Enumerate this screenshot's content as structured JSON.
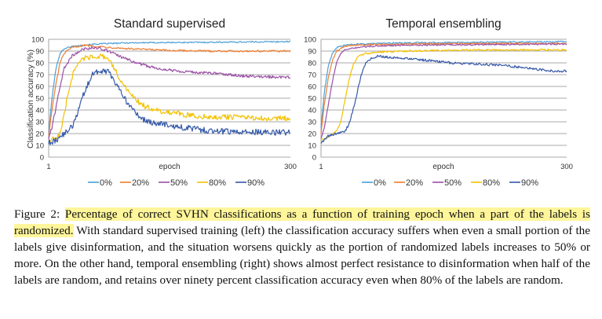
{
  "chart_data": [
    {
      "type": "line",
      "title": "Standard supervised",
      "xlabel": "epoch",
      "ylabel": "Classification accuracy (%)",
      "xlim": [
        1,
        300
      ],
      "ylim": [
        0,
        100
      ],
      "x_ticks": [
        "1",
        "300"
      ],
      "y_ticks": [
        "0",
        "10",
        "20",
        "30",
        "40",
        "50",
        "60",
        "70",
        "80",
        "90",
        "100"
      ],
      "grid": true,
      "legend": "bottom",
      "series": [
        {
          "name": "0%",
          "color": "#4a9fd6",
          "points": [
            [
              1,
              20
            ],
            [
              5,
              50
            ],
            [
              10,
              75
            ],
            [
              15,
              88
            ],
            [
              20,
              92
            ],
            [
              30,
              94
            ],
            [
              45,
              95
            ],
            [
              60,
              96
            ],
            [
              100,
              97
            ],
            [
              200,
              97.5
            ],
            [
              300,
              98
            ]
          ]
        },
        {
          "name": "20%",
          "color": "#ee7d31",
          "points": [
            [
              1,
              18
            ],
            [
              5,
              40
            ],
            [
              10,
              62
            ],
            [
              15,
              80
            ],
            [
              20,
              88
            ],
            [
              30,
              93
            ],
            [
              45,
              95
            ],
            [
              60,
              94
            ],
            [
              80,
              93
            ],
            [
              100,
              92
            ],
            [
              150,
              90.5
            ],
            [
              200,
              90
            ],
            [
              300,
              90
            ]
          ]
        },
        {
          "name": "50%",
          "color": "#9a4fa6",
          "points": [
            [
              1,
              16
            ],
            [
              5,
              25
            ],
            [
              10,
              42
            ],
            [
              15,
              60
            ],
            [
              20,
              75
            ],
            [
              30,
              86
            ],
            [
              45,
              92
            ],
            [
              60,
              93
            ],
            [
              75,
              90
            ],
            [
              90,
              85
            ],
            [
              110,
              80
            ],
            [
              130,
              76
            ],
            [
              150,
              74
            ],
            [
              180,
              72
            ],
            [
              210,
              71
            ],
            [
              240,
              69
            ],
            [
              270,
              68
            ],
            [
              300,
              68
            ]
          ]
        },
        {
          "name": "80%",
          "color": "#f3c100",
          "points": [
            [
              1,
              14
            ],
            [
              10,
              16
            ],
            [
              15,
              20
            ],
            [
              20,
              35
            ],
            [
              25,
              55
            ],
            [
              30,
              68
            ],
            [
              35,
              78
            ],
            [
              45,
              84
            ],
            [
              60,
              86
            ],
            [
              70,
              85
            ],
            [
              80,
              78
            ],
            [
              90,
              65
            ],
            [
              100,
              55
            ],
            [
              110,
              48
            ],
            [
              120,
              43
            ],
            [
              140,
              39
            ],
            [
              160,
              37
            ],
            [
              180,
              35
            ],
            [
              200,
              34
            ],
            [
              230,
              34
            ],
            [
              260,
              33
            ],
            [
              300,
              33
            ]
          ]
        },
        {
          "name": "90%",
          "color": "#3558a9",
          "points": [
            [
              1,
              12
            ],
            [
              10,
              14
            ],
            [
              20,
              20
            ],
            [
              30,
              26
            ],
            [
              38,
              40
            ],
            [
              45,
              55
            ],
            [
              55,
              70
            ],
            [
              65,
              74
            ],
            [
              75,
              72
            ],
            [
              85,
              62
            ],
            [
              95,
              50
            ],
            [
              105,
              40
            ],
            [
              115,
              33
            ],
            [
              130,
              29
            ],
            [
              150,
              27
            ],
            [
              170,
              25
            ],
            [
              190,
              23
            ],
            [
              210,
              22
            ],
            [
              240,
              21.5
            ],
            [
              270,
              21
            ],
            [
              300,
              21
            ]
          ]
        }
      ]
    },
    {
      "type": "line",
      "title": "Temporal ensembling",
      "xlabel": "epoch",
      "ylabel": "",
      "xlim": [
        1,
        300
      ],
      "ylim": [
        0,
        100
      ],
      "x_ticks": [
        "1",
        "300"
      ],
      "y_ticks": [
        "0",
        "10",
        "20",
        "30",
        "40",
        "50",
        "60",
        "70",
        "80",
        "90",
        "100"
      ],
      "grid": true,
      "legend": "bottom",
      "series": [
        {
          "name": "0%",
          "color": "#4a9fd6",
          "points": [
            [
              1,
              25
            ],
            [
              5,
              55
            ],
            [
              10,
              78
            ],
            [
              15,
              88
            ],
            [
              20,
              93
            ],
            [
              30,
              95
            ],
            [
              50,
              96
            ],
            [
              100,
              97
            ],
            [
              200,
              97.5
            ],
            [
              300,
              98
            ]
          ]
        },
        {
          "name": "20%",
          "color": "#ee7d31",
          "points": [
            [
              1,
              20
            ],
            [
              5,
              45
            ],
            [
              10,
              68
            ],
            [
              15,
              82
            ],
            [
              20,
              90
            ],
            [
              30,
              94
            ],
            [
              50,
              95.5
            ],
            [
              100,
              96
            ],
            [
              200,
              96.5
            ],
            [
              300,
              96.5
            ]
          ]
        },
        {
          "name": "50%",
          "color": "#9a4fa6",
          "points": [
            [
              1,
              16
            ],
            [
              5,
              25
            ],
            [
              10,
              45
            ],
            [
              15,
              65
            ],
            [
              20,
              80
            ],
            [
              25,
              88
            ],
            [
              30,
              91
            ],
            [
              45,
              93
            ],
            [
              60,
              94
            ],
            [
              100,
              95
            ],
            [
              200,
              95.5
            ],
            [
              300,
              96
            ]
          ]
        },
        {
          "name": "80%",
          "color": "#f3c100",
          "points": [
            [
              1,
              14
            ],
            [
              10,
              17
            ],
            [
              20,
              22
            ],
            [
              25,
              30
            ],
            [
              30,
              48
            ],
            [
              35,
              65
            ],
            [
              40,
              78
            ],
            [
              45,
              85
            ],
            [
              55,
              88
            ],
            [
              70,
              89
            ],
            [
              100,
              90
            ],
            [
              200,
              91
            ],
            [
              300,
              91
            ]
          ]
        },
        {
          "name": "90%",
          "color": "#3558a9",
          "points": [
            [
              1,
              12
            ],
            [
              10,
              18
            ],
            [
              20,
              20
            ],
            [
              30,
              22
            ],
            [
              35,
              28
            ],
            [
              40,
              40
            ],
            [
              45,
              55
            ],
            [
              50,
              70
            ],
            [
              55,
              79
            ],
            [
              60,
              83
            ],
            [
              70,
              86
            ],
            [
              80,
              85
            ],
            [
              100,
              84
            ],
            [
              130,
              82
            ],
            [
              160,
              80
            ],
            [
              190,
              79
            ],
            [
              220,
              78
            ],
            [
              250,
              76
            ],
            [
              270,
              74
            ],
            [
              285,
              73
            ],
            [
              300,
              73
            ]
          ]
        }
      ]
    }
  ],
  "caption": {
    "label": "Figure 2:",
    "highlighted": "Percentage of correct SVHN classifications as a function of training epoch when a part of the labels is randomized.",
    "body": "With standard supervised training (left) the classification accuracy suffers when even a small portion of the labels give disinformation, and the situation worsens quickly as the portion of randomized labels increases to 50% or more. On the other hand, temporal ensembling (right) shows almost perfect resistance to disinformation when half of the labels are random, and retains over ninety percent classification accuracy even when 80% of the labels are random."
  }
}
